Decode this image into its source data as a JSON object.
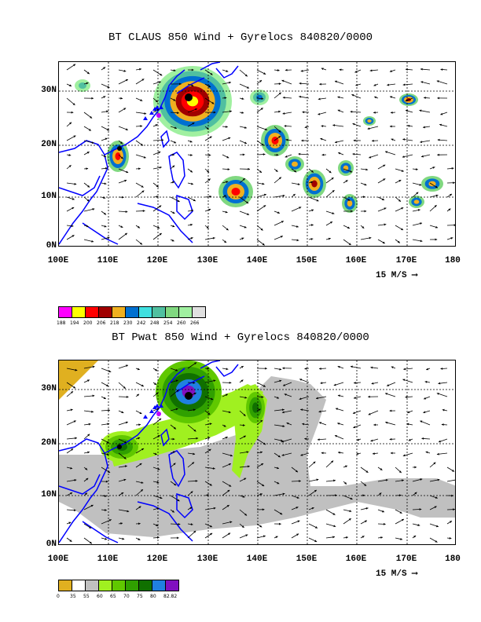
{
  "panel1": {
    "title": "BT CLAUS 850 Wind + Gyrelocs 840820/0000",
    "vector_label": "15 M/S ⟶",
    "colorbar": {
      "labels": [
        "188",
        "194",
        "200",
        "206",
        "218",
        "230",
        "242",
        "248",
        "254",
        "260",
        "266"
      ],
      "colors": [
        "#ff00ff",
        "#ffff00",
        "#ff0000",
        "#a00000",
        "#f0b020",
        "#0070d0",
        "#40e0e0",
        "#50c0a0",
        "#80d880",
        "#a0f0a0",
        "#e0e0e0"
      ]
    }
  },
  "panel2": {
    "title": "BT Pwat 850 Wind + Gyrelocs 840820/0000",
    "vector_label": "15 M/S ⟶",
    "colorbar": {
      "labels": [
        "0",
        "35",
        "55",
        "60",
        "65",
        "70",
        "75",
        "80",
        "82.82"
      ],
      "colors": [
        "#e0b020",
        "#ffffff",
        "#c0c0c0",
        "#a0f020",
        "#60c800",
        "#30a000",
        "#107000",
        "#2080e0",
        "#8010c0"
      ]
    }
  },
  "axes": {
    "lat_labels": [
      "30N",
      "20N",
      "10N",
      "0N"
    ],
    "lon_labels": [
      "100E",
      "110E",
      "120E",
      "130E",
      "140E",
      "150E",
      "160E",
      "170E",
      "180"
    ]
  },
  "colors": {
    "coast": "#0000ff",
    "grid": "#000000"
  }
}
